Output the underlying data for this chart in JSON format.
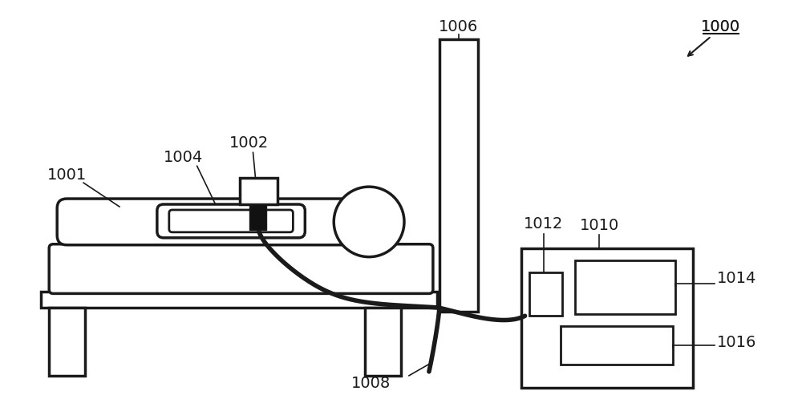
{
  "bg_color": "#ffffff",
  "line_color": "#1a1a1a",
  "fig_width": 10.0,
  "fig_height": 5.13,
  "dpi": 100,
  "font_size": 14,
  "lw_main": 2.0,
  "lw_thick": 2.5,
  "lw_cable": 4.0
}
